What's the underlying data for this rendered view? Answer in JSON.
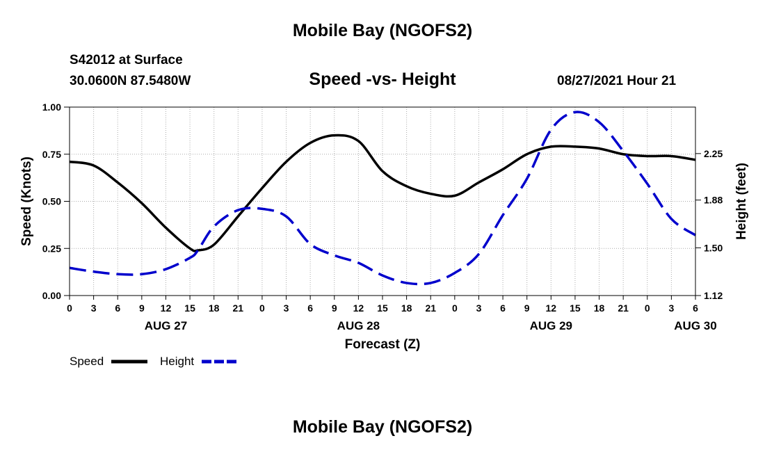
{
  "header": {
    "title": "Mobile Bay (NGOFS2)",
    "station": "S42012 at Surface",
    "coords": "30.0600N  87.5480W",
    "subtitle": "Speed -vs- Height",
    "datetime": "08/27/2021 Hour 21"
  },
  "footer": {
    "title": "Mobile Bay (NGOFS2)"
  },
  "legend": {
    "speed_label": "Speed",
    "height_label": "Height"
  },
  "chart_data": {
    "type": "line",
    "xlabel": "Forecast (Z)",
    "ylabel_left": "Speed (Knots)",
    "ylabel_right": "Height (feet)",
    "x_ticks": [
      "0",
      "3",
      "6",
      "9",
      "12",
      "15",
      "18",
      "21",
      "0",
      "3",
      "6",
      "9",
      "12",
      "15",
      "18",
      "21",
      "0",
      "3",
      "6",
      "9",
      "12",
      "15",
      "18",
      "21",
      "0",
      "3",
      "6"
    ],
    "date_labels": [
      {
        "label": "AUG 27",
        "hour_index": 12
      },
      {
        "label": "AUG 28",
        "hour_index": 36
      },
      {
        "label": "AUG 29",
        "hour_index": 60
      },
      {
        "label": "AUG 30",
        "hour_index": 78
      }
    ],
    "ylim_left": [
      0,
      1
    ],
    "yticks_left": [
      "0.00",
      "0.25",
      "0.50",
      "0.75",
      "1.00"
    ],
    "ylim_right": [
      1.12,
      2.62
    ],
    "yticks_right": [
      "1.12",
      "1.50",
      "1.88",
      "2.25"
    ],
    "yticks_right_values": [
      1.12,
      1.5,
      1.88,
      2.25
    ],
    "x_hours": [
      0,
      3,
      6,
      9,
      12,
      15,
      16,
      18,
      21,
      24,
      27,
      30,
      33,
      36,
      39,
      42,
      45,
      48,
      51,
      54,
      57,
      60,
      63,
      66,
      69,
      72,
      75,
      78
    ],
    "series": [
      {
        "name": "Speed",
        "color": "#000000",
        "dash": "solid",
        "axis": "left",
        "values": [
          0.71,
          0.69,
          0.6,
          0.49,
          0.36,
          0.25,
          0.24,
          0.27,
          0.42,
          0.57,
          0.71,
          0.81,
          0.85,
          0.82,
          0.66,
          0.58,
          0.54,
          0.53,
          0.6,
          0.67,
          0.75,
          0.79,
          0.79,
          0.78,
          0.75,
          0.74,
          0.74,
          0.72
        ]
      },
      {
        "name": "Height",
        "color": "#0000cc",
        "dash": "dashed",
        "axis": "right",
        "values": [
          1.34,
          1.31,
          1.29,
          1.29,
          1.33,
          1.42,
          1.48,
          1.67,
          1.8,
          1.81,
          1.75,
          1.53,
          1.44,
          1.38,
          1.28,
          1.22,
          1.22,
          1.3,
          1.45,
          1.76,
          2.05,
          2.44,
          2.58,
          2.5,
          2.27,
          2.01,
          1.73,
          1.6
        ]
      }
    ],
    "grid": true
  }
}
